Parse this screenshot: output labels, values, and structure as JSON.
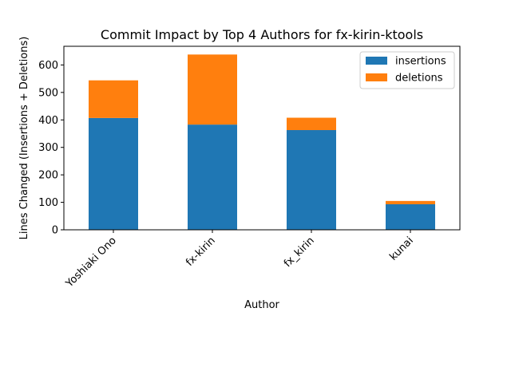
{
  "chart_data": {
    "type": "bar",
    "stacked": true,
    "title": "Commit Impact by Top 4 Authors for fx-kirin-ktools",
    "xlabel": "Author",
    "ylabel": "Lines Changed (Insertions + Deletions)",
    "categories": [
      "Yoshiaki Ono",
      "fx-kirin",
      "fx_kirin",
      "kunai"
    ],
    "series": [
      {
        "name": "insertions",
        "values": [
          407,
          383,
          363,
          93
        ],
        "color": "#1f77b4"
      },
      {
        "name": "deletions",
        "values": [
          137,
          255,
          45,
          12
        ],
        "color": "#ff7f0e"
      }
    ],
    "ylim": [
      0,
      668
    ],
    "yticks": [
      0,
      100,
      200,
      300,
      400,
      500,
      600
    ],
    "grid": false,
    "legend_position": "top-right"
  }
}
